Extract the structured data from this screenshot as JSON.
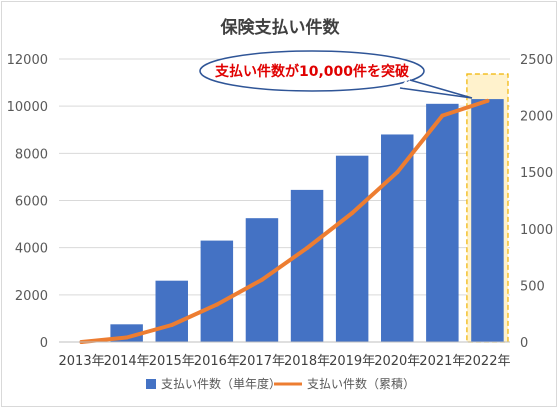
{
  "chart_data": {
    "type": "bar+line",
    "title": "保険支払い件数",
    "categories": [
      "2013年",
      "2014年",
      "2015年",
      "2016年",
      "2017年",
      "2018年",
      "2019年",
      "2020年",
      "2021年",
      "2022年"
    ],
    "series": [
      {
        "name": "支払い件数（単年度）",
        "type": "bar",
        "axis": "left",
        "color": "#4472c4",
        "values": [
          20,
          750,
          2600,
          4300,
          5250,
          6450,
          7900,
          8800,
          10100,
          10300
        ]
      },
      {
        "name": "支払い件数（累積）",
        "type": "line",
        "axis": "right",
        "color": "#ed7d31",
        "values": [
          0,
          40,
          150,
          330,
          550,
          830,
          1140,
          1500,
          2000,
          2130
        ]
      }
    ],
    "y_left": {
      "min": 0,
      "max": 12000,
      "ticks": [
        0,
        2000,
        4000,
        6000,
        8000,
        10000,
        12000
      ]
    },
    "y_right": {
      "min": 0,
      "max": 2500,
      "ticks": [
        0,
        500,
        1000,
        1500,
        2000,
        2500
      ]
    },
    "grid": true,
    "legend_position": "bottom",
    "highlight_category": "2022年",
    "highlight_color": "#fff2cc",
    "highlight_border_color": "#f0b400",
    "annotation": {
      "text": "支払い件数が10,000件を突破",
      "color": "#e00000"
    }
  }
}
